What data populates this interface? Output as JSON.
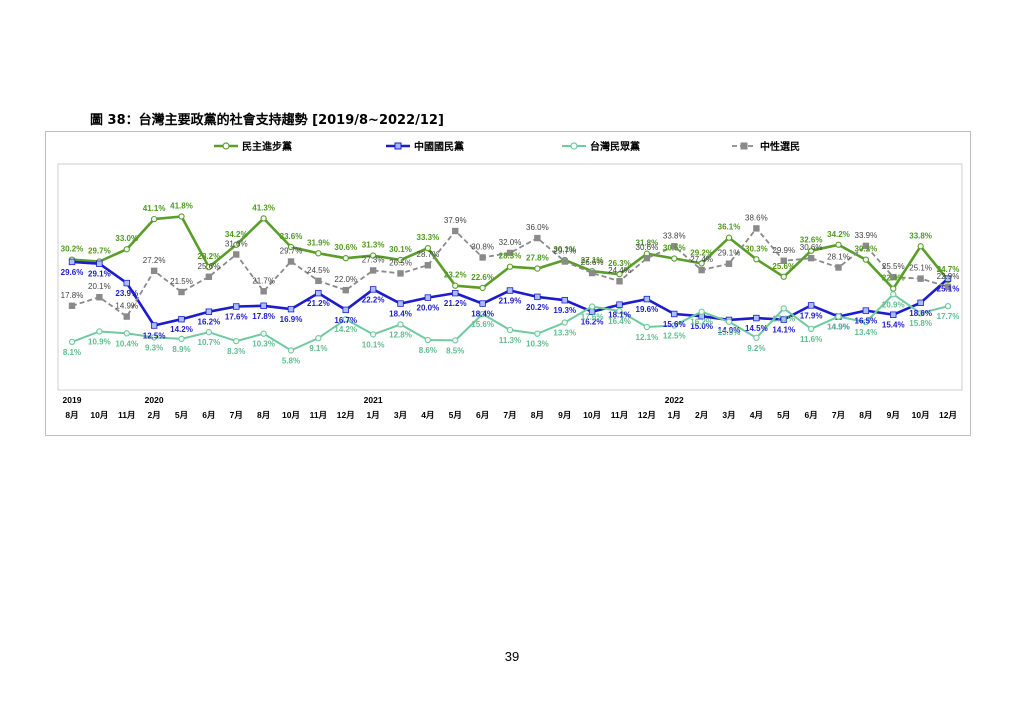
{
  "figure_title": "圖 38：台灣主要政黨的社會支持趨勢  [2019/8~2022/12]",
  "page_number": "39",
  "colors": {
    "dpp": "#5a9e2a",
    "kmt": "#1c1ccc",
    "tpp": "#6fcb9f",
    "neutral": "#8a8a8a"
  },
  "chart_data": {
    "type": "line",
    "title": "",
    "xlabel": "",
    "ylabel": "",
    "ylim": [
      0,
      50
    ],
    "grid": false,
    "legend_position": "top",
    "categories": [
      "8月",
      "10月",
      "11月",
      "2月",
      "5月",
      "6月",
      "7月",
      "8月",
      "10月",
      "11月",
      "12月",
      "1月",
      "3月",
      "4月",
      "5月",
      "6月",
      "7月",
      "8月",
      "9月",
      "10月",
      "11月",
      "12月",
      "1月",
      "2月",
      "3月",
      "4月",
      "5月",
      "6月",
      "7月",
      "8月",
      "9月",
      "10月",
      "12月"
    ],
    "year_labels": [
      {
        "label": "2019",
        "index": 0
      },
      {
        "label": "2020",
        "index": 3
      },
      {
        "label": "2021",
        "index": 11
      },
      {
        "label": "2022",
        "index": 22
      }
    ],
    "series": [
      {
        "name": "民主進步黨",
        "key": "dpp",
        "color": "#5a9e2a",
        "values": [
          30.2,
          29.7,
          33.0,
          41.1,
          41.8,
          28.2,
          34.2,
          41.3,
          33.6,
          31.9,
          30.6,
          31.3,
          30.1,
          33.3,
          23.2,
          22.6,
          28.3,
          27.8,
          30.1,
          27.1,
          26.3,
          31.8,
          30.5,
          29.2,
          36.1,
          30.3,
          25.6,
          32.6,
          34.2,
          30.2,
          22.4,
          33.8,
          24.7
        ]
      },
      {
        "name": "中國國民黨",
        "key": "kmt",
        "color": "#1c1ccc",
        "values": [
          29.6,
          29.1,
          23.9,
          12.5,
          14.2,
          16.2,
          17.6,
          17.8,
          16.9,
          21.2,
          16.7,
          22.2,
          18.4,
          20.0,
          21.2,
          18.4,
          21.9,
          20.2,
          19.3,
          16.2,
          18.1,
          19.6,
          15.6,
          15.0,
          14.0,
          14.5,
          14.1,
          17.9,
          14.9,
          16.5,
          15.4,
          18.6,
          25.1
        ]
      },
      {
        "name": "台灣民眾黨",
        "key": "tpp",
        "color": "#6fcb9f",
        "values": [
          8.1,
          10.9,
          10.4,
          9.3,
          8.9,
          10.7,
          8.3,
          10.3,
          5.8,
          9.1,
          14.2,
          10.1,
          12.8,
          8.6,
          8.5,
          15.6,
          11.3,
          10.3,
          13.3,
          17.6,
          16.4,
          12.1,
          12.5,
          16.2,
          13.5,
          9.2,
          17.1,
          11.6,
          14.9,
          13.4,
          20.9,
          15.8,
          17.7
        ]
      },
      {
        "name": "中性選民",
        "key": "neutral",
        "color": "#8a8a8a",
        "values": [
          17.8,
          20.1,
          14.9,
          27.2,
          21.5,
          25.6,
          31.6,
          21.7,
          29.7,
          24.5,
          22.0,
          27.3,
          26.5,
          28.7,
          37.9,
          30.8,
          32.0,
          36.0,
          29.7,
          26.6,
          24.4,
          30.6,
          33.8,
          27.4,
          29.1,
          38.6,
          29.9,
          30.6,
          28.1,
          33.9,
          25.5,
          25.1,
          22.9
        ]
      }
    ]
  }
}
